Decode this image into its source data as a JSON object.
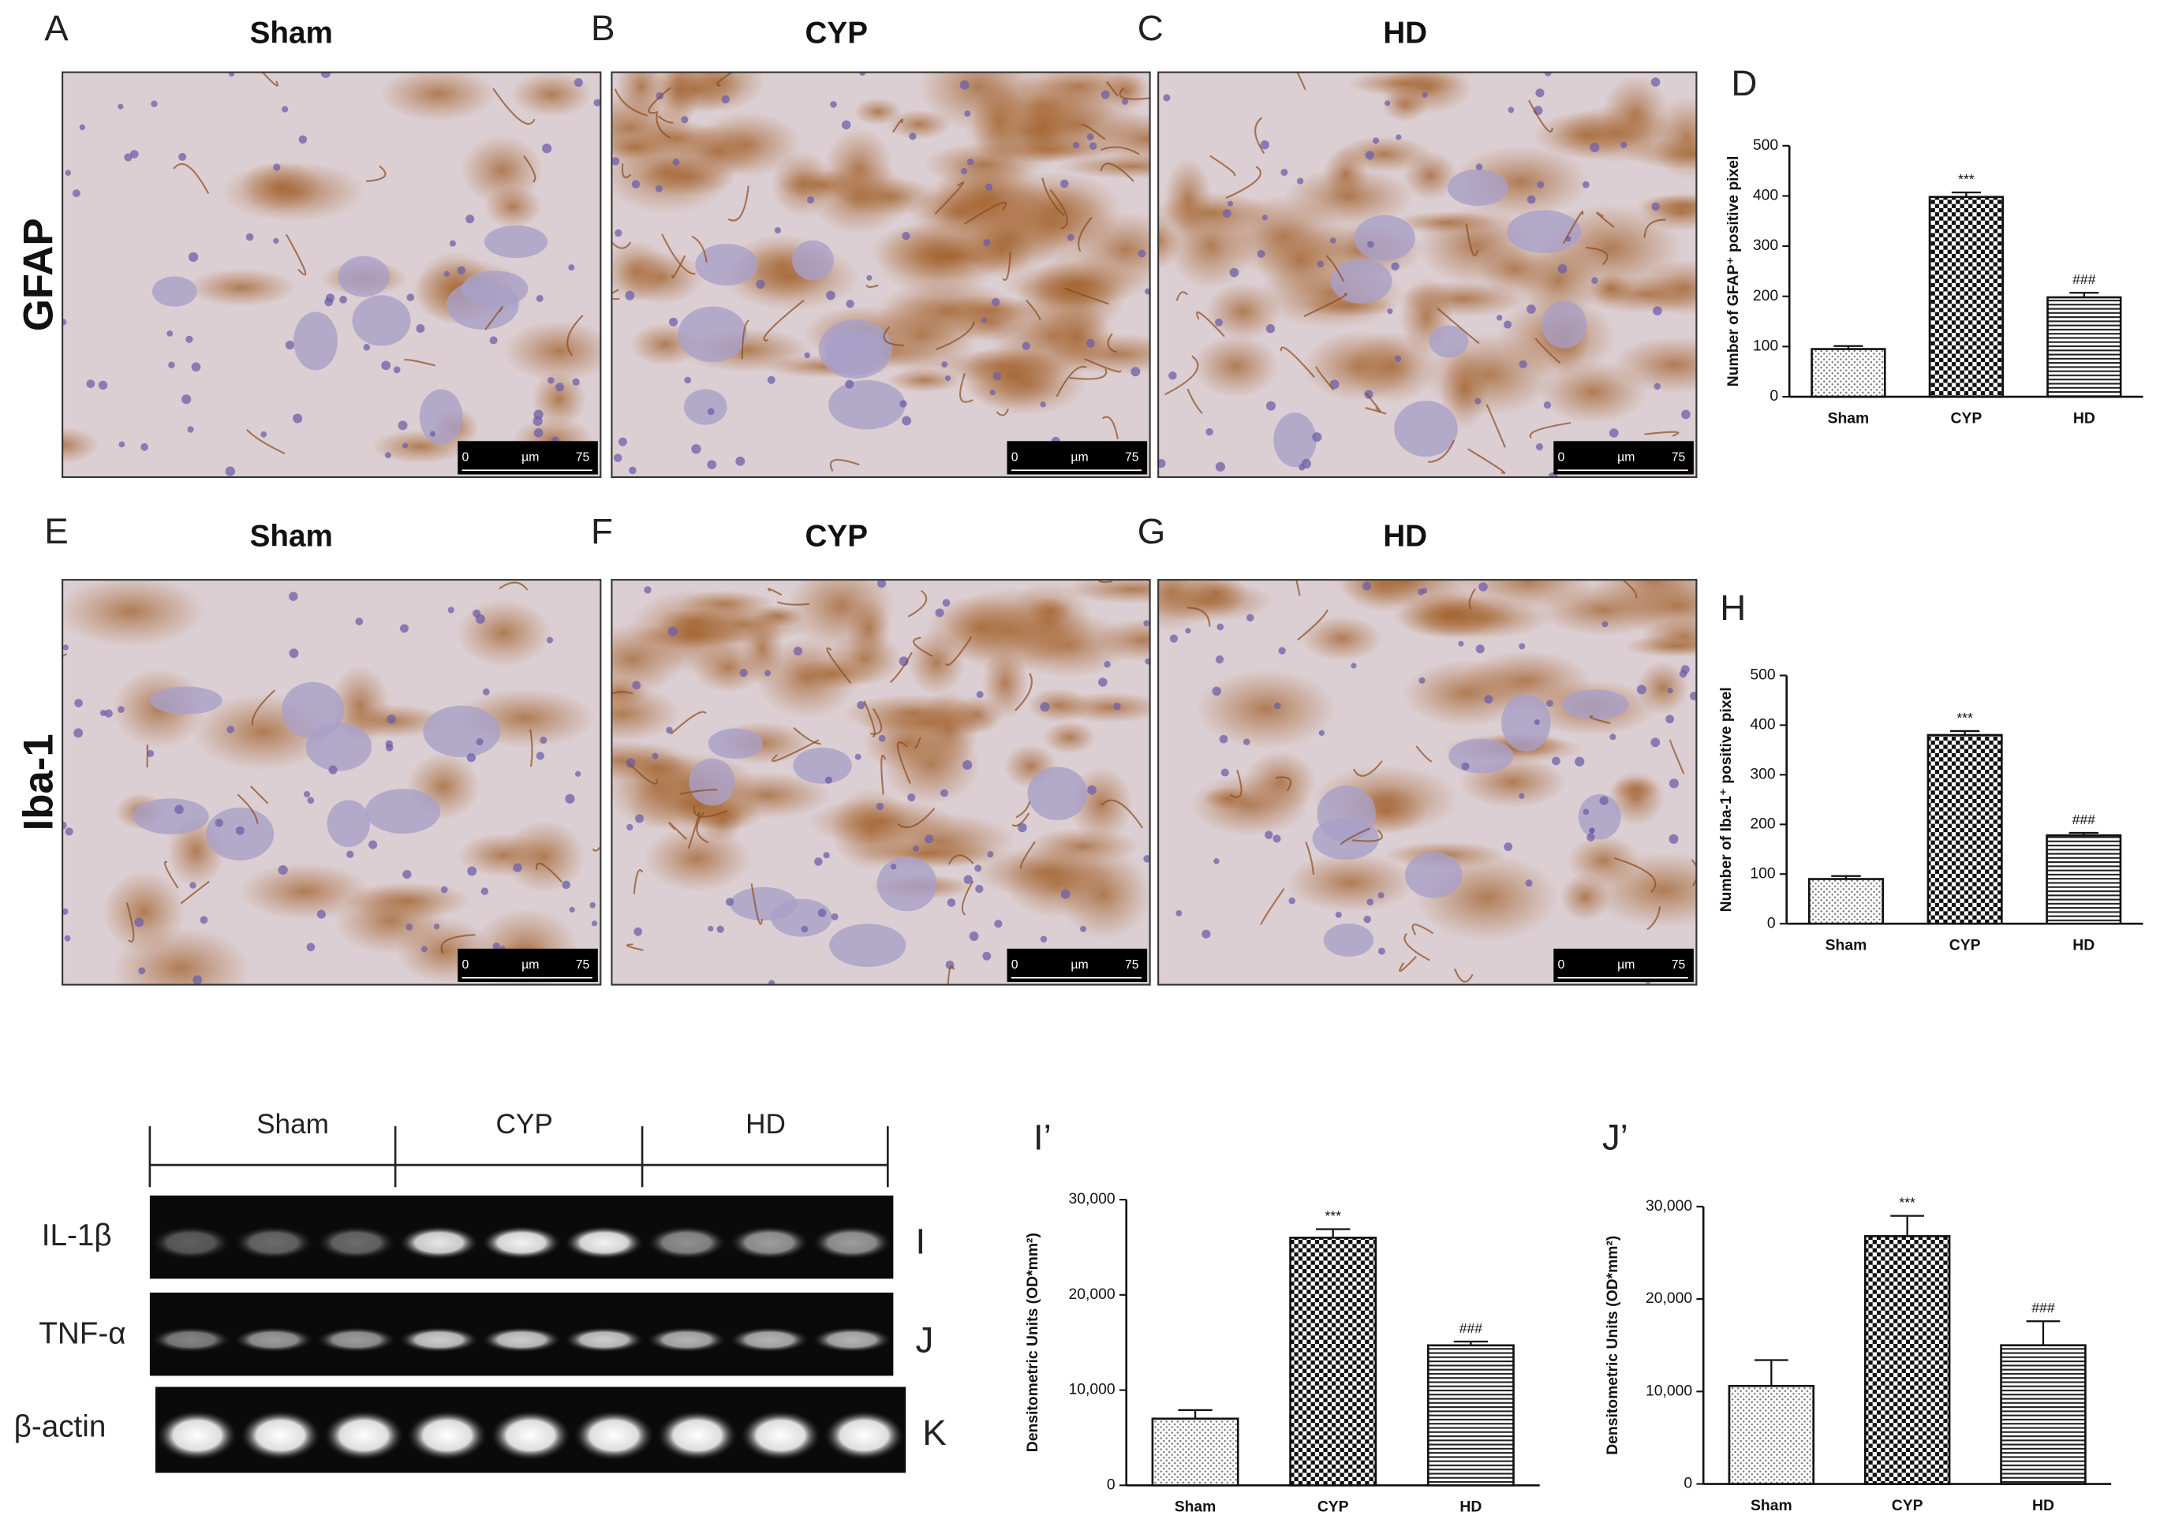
{
  "micrographs": {
    "rows": [
      {
        "marker": "GFAP",
        "panels": [
          {
            "letter": "A",
            "title": "Sham"
          },
          {
            "letter": "B",
            "title": "CYP"
          },
          {
            "letter": "C",
            "title": "HD"
          }
        ]
      },
      {
        "marker": "Iba-1",
        "panels": [
          {
            "letter": "E",
            "title": "Sham"
          },
          {
            "letter": "F",
            "title": "CYP"
          },
          {
            "letter": "G",
            "title": "HD"
          }
        ]
      }
    ],
    "scale_bar": {
      "start": "0",
      "unit": "µm",
      "end": "75"
    }
  },
  "western_blot": {
    "groups": [
      "Sham",
      "CYP",
      "HD"
    ],
    "bands": [
      {
        "label": "IL-1β",
        "panel": "I"
      },
      {
        "label": "TNF-α",
        "panel": "J"
      },
      {
        "label": "β-actin",
        "panel": "K"
      }
    ]
  },
  "chart_data": [
    {
      "type": "bar",
      "panel": "D",
      "y_label": "Number of GFAP⁺ positive pixel",
      "categories": [
        "Sham",
        "CYP",
        "HD"
      ],
      "values": [
        95,
        398,
        198
      ],
      "errors": [
        6,
        9,
        9
      ],
      "bar_annotations": [
        null,
        "***",
        "###"
      ],
      "patterns": [
        "dots",
        "checker",
        "hlines"
      ],
      "ylim": [
        0,
        500
      ],
      "yticks": [
        0,
        100,
        200,
        300,
        400,
        500
      ]
    },
    {
      "type": "bar",
      "panel": "H",
      "y_label": "Number of Iba-1⁺ positive pixel",
      "categories": [
        "Sham",
        "CYP",
        "HD"
      ],
      "values": [
        90,
        380,
        178
      ],
      "errors": [
        6,
        8,
        5
      ],
      "bar_annotations": [
        null,
        "***",
        "###"
      ],
      "patterns": [
        "dots",
        "checker",
        "hlines"
      ],
      "ylim": [
        0,
        500
      ],
      "yticks": [
        0,
        100,
        200,
        300,
        400,
        500
      ]
    },
    {
      "type": "bar",
      "panel": "I’",
      "y_label": "Densitometric Units (OD*mm²)",
      "categories": [
        "Sham",
        "CYP",
        "HD"
      ],
      "values": [
        7000,
        26000,
        14700
      ],
      "errors": [
        900,
        900,
        400
      ],
      "bar_annotations": [
        null,
        "***",
        "###"
      ],
      "patterns": [
        "dots",
        "checker",
        "hlines"
      ],
      "ylim": [
        0,
        30000
      ],
      "yticks": [
        0,
        {
          "value": 10000,
          "label": "10,000"
        },
        {
          "value": 20000,
          "label": "20,000"
        },
        {
          "value": 30000,
          "label": "30,000"
        }
      ]
    },
    {
      "type": "bar",
      "panel": "J’",
      "y_label": "Densitometric Units (OD*mm²)",
      "categories": [
        "Sham",
        "CYP",
        "HD"
      ],
      "values": [
        10600,
        26800,
        15000
      ],
      "errors": [
        2800,
        2200,
        2600
      ],
      "bar_annotations": [
        null,
        "***",
        "###"
      ],
      "patterns": [
        "dots",
        "checker",
        "hlines"
      ],
      "ylim": [
        0,
        30000
      ],
      "yticks": [
        0,
        {
          "value": 10000,
          "label": "10,000"
        },
        {
          "value": 20000,
          "label": "20,000"
        },
        {
          "value": 30000,
          "label": "30,000"
        }
      ]
    }
  ]
}
